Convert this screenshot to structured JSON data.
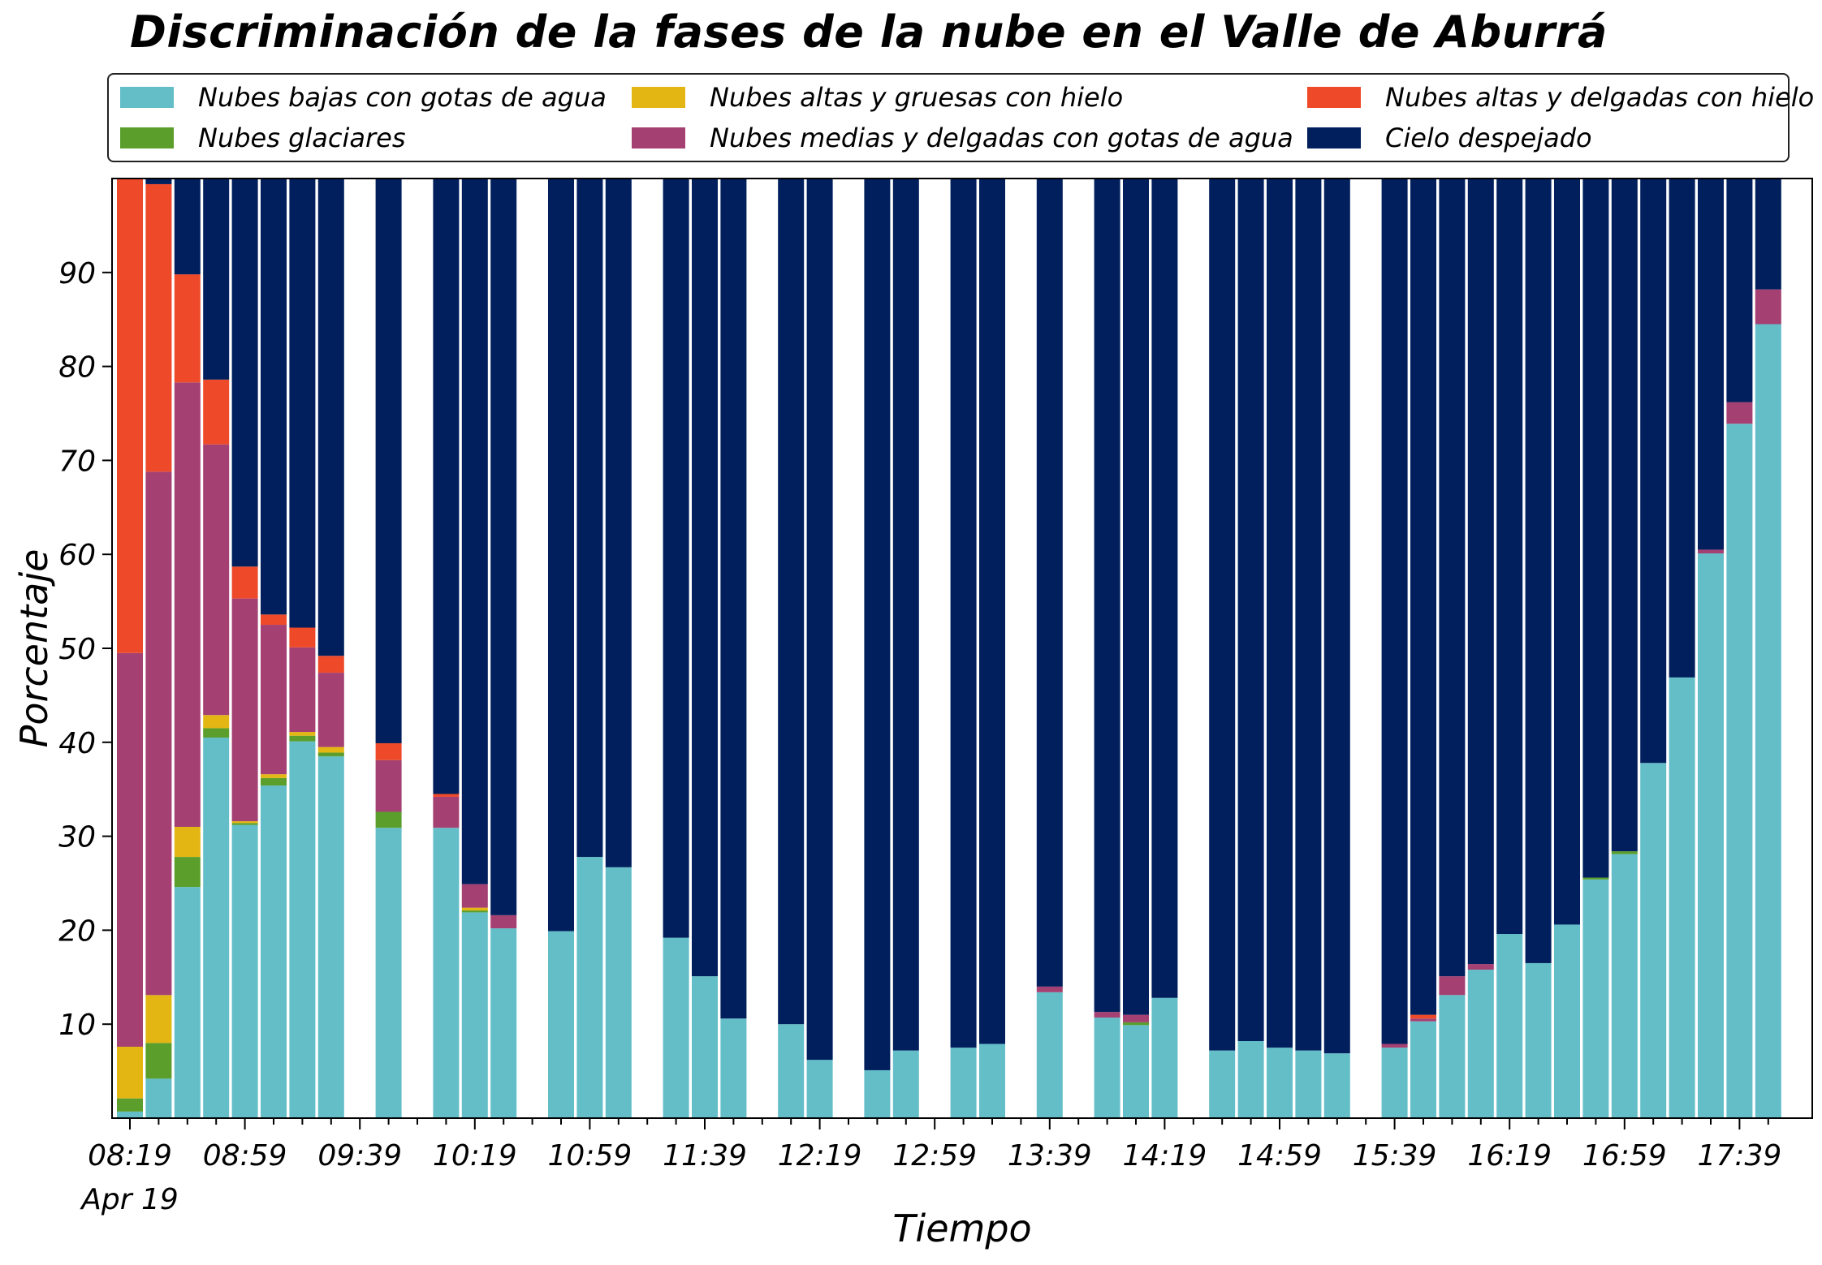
{
  "chart_data": {
    "type": "bar",
    "stacked": true,
    "title": "Discriminación de la fases de la nube en el Valle de Aburrá",
    "xlabel": "Tiempo",
    "ylabel": "Porcentaje",
    "ylim": [
      0,
      100
    ],
    "yticks": [
      10,
      20,
      30,
      40,
      50,
      60,
      70,
      80,
      90
    ],
    "xticks": [
      "08:19",
      "08:59",
      "09:39",
      "10:19",
      "10:59",
      "11:39",
      "12:19",
      "12:59",
      "13:39",
      "14:19",
      "14:59",
      "15:39",
      "16:19",
      "16:59",
      "17:39"
    ],
    "xtick_sublabel": "Apr 19",
    "time_start": "08:19",
    "time_end": "17:49",
    "slot_minutes": 10,
    "legend_placement": "top",
    "grid": false,
    "series": [
      {
        "name": "Nubes bajas con gotas de agua",
        "color": "#63bec8"
      },
      {
        "name": "Nubes glaciares",
        "color": "#5b9e2b"
      },
      {
        "name": "Nubes altas y gruesas con hielo",
        "color": "#e3b614"
      },
      {
        "name": "Nubes medias y delgadas con gotas de agua",
        "color": "#a44072"
      },
      {
        "name": "Nubes altas y delgadas con hielo",
        "color": "#ee4a2a"
      },
      {
        "name": "Cielo despejado",
        "color": "#001f5c"
      }
    ],
    "bars": [
      {
        "time": "08:19",
        "values": [
          0.7,
          1.4,
          5.5,
          41.9,
          50.5,
          0
        ]
      },
      {
        "time": "08:29",
        "values": [
          4.2,
          3.8,
          5.1,
          55.7,
          30.6,
          0.6
        ]
      },
      {
        "time": "08:39",
        "values": [
          24.6,
          3.2,
          3.2,
          47.3,
          11.5,
          10.2
        ]
      },
      {
        "time": "08:49",
        "values": [
          40.5,
          1.0,
          1.4,
          28.8,
          6.9,
          21.4
        ]
      },
      {
        "time": "08:59",
        "values": [
          31.2,
          0.2,
          0.2,
          23.7,
          3.4,
          41.3
        ]
      },
      {
        "time": "09:09",
        "values": [
          35.4,
          0.8,
          0.4,
          15.9,
          1.1,
          46.4
        ]
      },
      {
        "time": "09:19",
        "values": [
          40.1,
          0.6,
          0.4,
          9.0,
          2.1,
          47.8
        ]
      },
      {
        "time": "09:29",
        "values": [
          38.5,
          0.4,
          0.6,
          7.9,
          1.8,
          50.8
        ]
      },
      {
        "time": "09:49",
        "values": [
          30.9,
          1.7,
          0,
          5.5,
          1.8,
          60.1
        ]
      },
      {
        "time": "10:09",
        "values": [
          30.9,
          0,
          0,
          3.3,
          0.3,
          65.5
        ]
      },
      {
        "time": "10:19",
        "values": [
          21.9,
          0.2,
          0.3,
          2.5,
          0,
          75.1
        ]
      },
      {
        "time": "10:29",
        "values": [
          20.2,
          0,
          0,
          1.4,
          0,
          78.4
        ]
      },
      {
        "time": "10:49",
        "values": [
          19.9,
          0,
          0,
          0,
          0,
          80.1
        ]
      },
      {
        "time": "10:59",
        "values": [
          27.8,
          0,
          0,
          0,
          0,
          72.2
        ]
      },
      {
        "time": "11:09",
        "values": [
          26.7,
          0,
          0,
          0,
          0,
          73.3
        ]
      },
      {
        "time": "11:29",
        "values": [
          19.2,
          0,
          0,
          0,
          0,
          80.8
        ]
      },
      {
        "time": "11:39",
        "values": [
          15.1,
          0,
          0,
          0,
          0,
          84.9
        ]
      },
      {
        "time": "11:49",
        "values": [
          10.6,
          0,
          0,
          0,
          0,
          89.4
        ]
      },
      {
        "time": "12:09",
        "values": [
          10.0,
          0,
          0,
          0,
          0,
          90.0
        ]
      },
      {
        "time": "12:19",
        "values": [
          6.2,
          0,
          0,
          0,
          0,
          93.8
        ]
      },
      {
        "time": "12:39",
        "values": [
          5.1,
          0,
          0,
          0,
          0,
          94.9
        ]
      },
      {
        "time": "12:49",
        "values": [
          7.2,
          0,
          0,
          0,
          0,
          92.8
        ]
      },
      {
        "time": "13:09",
        "values": [
          7.5,
          0,
          0,
          0,
          0,
          92.5
        ]
      },
      {
        "time": "13:19",
        "values": [
          7.9,
          0,
          0,
          0,
          0,
          92.1
        ]
      },
      {
        "time": "13:39",
        "values": [
          13.4,
          0,
          0,
          0.6,
          0,
          86.0
        ]
      },
      {
        "time": "13:59",
        "values": [
          10.7,
          0,
          0,
          0.6,
          0,
          88.7
        ]
      },
      {
        "time": "14:09",
        "values": [
          9.9,
          0.3,
          0,
          0.8,
          0,
          89.0
        ]
      },
      {
        "time": "14:19",
        "values": [
          12.8,
          0,
          0,
          0,
          0,
          87.2
        ]
      },
      {
        "time": "14:39",
        "values": [
          7.2,
          0,
          0,
          0,
          0,
          92.8
        ]
      },
      {
        "time": "14:49",
        "values": [
          8.2,
          0,
          0,
          0,
          0,
          91.8
        ]
      },
      {
        "time": "14:59",
        "values": [
          7.5,
          0,
          0,
          0,
          0,
          92.5
        ]
      },
      {
        "time": "15:09",
        "values": [
          7.2,
          0,
          0,
          0,
          0,
          92.8
        ]
      },
      {
        "time": "15:19",
        "values": [
          6.9,
          0,
          0,
          0,
          0,
          93.1
        ]
      },
      {
        "time": "15:39",
        "values": [
          7.5,
          0,
          0,
          0.4,
          0,
          92.1
        ]
      },
      {
        "time": "15:49",
        "values": [
          10.3,
          0,
          0,
          0.3,
          0.4,
          89.0
        ]
      },
      {
        "time": "15:59",
        "values": [
          13.1,
          0,
          0,
          2.0,
          0,
          84.9
        ]
      },
      {
        "time": "16:09",
        "values": [
          15.8,
          0,
          0,
          0.6,
          0,
          83.6
        ]
      },
      {
        "time": "16:19",
        "values": [
          19.6,
          0,
          0,
          0,
          0,
          80.4
        ]
      },
      {
        "time": "16:29",
        "values": [
          16.5,
          0,
          0,
          0,
          0,
          83.5
        ]
      },
      {
        "time": "16:39",
        "values": [
          20.6,
          0,
          0,
          0,
          0,
          79.4
        ]
      },
      {
        "time": "16:49",
        "values": [
          25.4,
          0.2,
          0,
          0,
          0,
          74.4
        ]
      },
      {
        "time": "16:59",
        "values": [
          28.1,
          0.3,
          0,
          0,
          0,
          71.6
        ]
      },
      {
        "time": "17:09",
        "values": [
          37.8,
          0,
          0,
          0,
          0,
          62.2
        ]
      },
      {
        "time": "17:19",
        "values": [
          46.9,
          0,
          0,
          0,
          0,
          53.1
        ]
      },
      {
        "time": "17:29",
        "values": [
          60.1,
          0,
          0,
          0.4,
          0,
          39.5
        ]
      },
      {
        "time": "17:39",
        "values": [
          73.9,
          0,
          0,
          2.3,
          0,
          23.8
        ]
      },
      {
        "time": "17:49",
        "values": [
          84.5,
          0,
          0,
          3.7,
          0,
          11.8
        ]
      }
    ]
  }
}
